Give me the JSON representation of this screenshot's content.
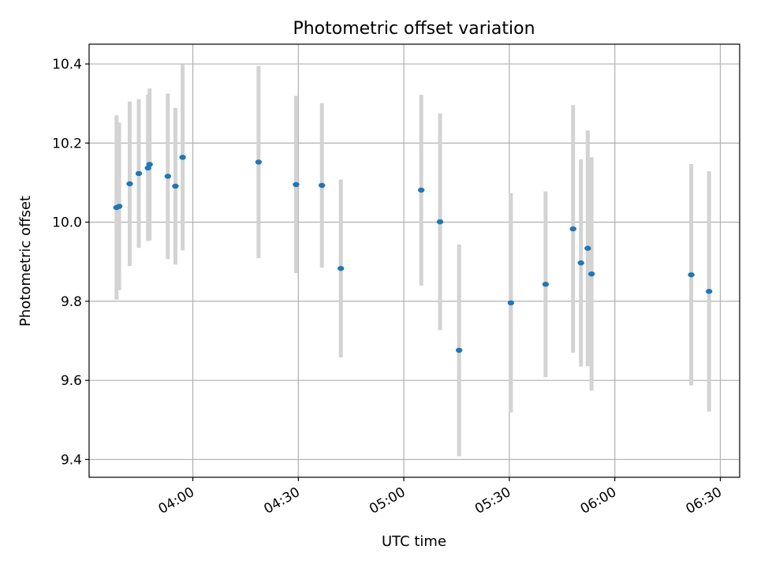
{
  "chart_data": {
    "type": "scatter",
    "title": "Photometric offset variation",
    "xlabel": "UTC time",
    "ylabel": "Photometric offset",
    "x_ticks": [
      "04:00",
      "04:30",
      "05:00",
      "05:30",
      "06:00",
      "06:30"
    ],
    "y_ticks": [
      "9.4",
      "9.6",
      "9.8",
      "10.0",
      "10.2",
      "10.4"
    ],
    "xlim": [
      "03:30:30",
      "06:35:30"
    ],
    "ylim": [
      9.355,
      10.45
    ],
    "grid": true,
    "colors": {
      "points": "#1f77b4",
      "error_bars": "#d3d3d3",
      "grid": "#b0b0b0"
    },
    "points": [
      {
        "x": "03:38:18",
        "y": 10.037,
        "err": 0.233
      },
      {
        "x": "03:39:03",
        "y": 10.04,
        "err": 0.212
      },
      {
        "x": "03:42:03",
        "y": 10.097,
        "err": 0.208
      },
      {
        "x": "03:44:38",
        "y": 10.123,
        "err": 0.188
      },
      {
        "x": "03:47:15",
        "y": 10.137,
        "err": 0.185
      },
      {
        "x": "03:47:42",
        "y": 10.146,
        "err": 0.192
      },
      {
        "x": "03:52:53",
        "y": 10.116,
        "err": 0.209
      },
      {
        "x": "03:55:03",
        "y": 10.091,
        "err": 0.198
      },
      {
        "x": "03:57:06",
        "y": 10.164,
        "err": 0.235
      },
      {
        "x": "04:18:41",
        "y": 10.152,
        "err": 0.243
      },
      {
        "x": "04:29:21",
        "y": 10.095,
        "err": 0.224
      },
      {
        "x": "04:36:42",
        "y": 10.093,
        "err": 0.208
      },
      {
        "x": "04:42:05",
        "y": 9.883,
        "err": 0.225
      },
      {
        "x": "05:04:57",
        "y": 10.081,
        "err": 0.241
      },
      {
        "x": "05:10:18",
        "y": 10.001,
        "err": 0.274
      },
      {
        "x": "05:15:43",
        "y": 9.676,
        "err": 0.268
      },
      {
        "x": "05:30:27",
        "y": 9.796,
        "err": 0.277
      },
      {
        "x": "05:40:19",
        "y": 9.843,
        "err": 0.235
      },
      {
        "x": "05:48:08",
        "y": 9.983,
        "err": 0.313
      },
      {
        "x": "05:50:22",
        "y": 9.897,
        "err": 0.262
      },
      {
        "x": "05:52:18",
        "y": 9.934,
        "err": 0.298
      },
      {
        "x": "05:53:23",
        "y": 9.869,
        "err": 0.295
      },
      {
        "x": "06:21:44",
        "y": 9.867,
        "err": 0.28
      },
      {
        "x": "06:26:48",
        "y": 9.825,
        "err": 0.304
      }
    ]
  }
}
